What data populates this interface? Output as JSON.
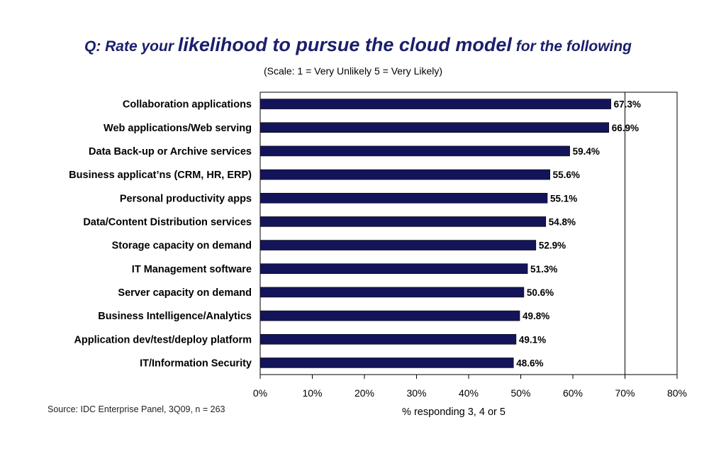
{
  "header": {
    "title_parts": [
      "Q: Rate your ",
      "likelihood to pursue the cloud model",
      " for the following"
    ],
    "subtitle": "(Scale: 1 = Very Unlikely  5 = Very Likely)"
  },
  "footer": {
    "source": "Source: IDC Enterprise Panel, 3Q09, n = 263"
  },
  "chart_data": {
    "type": "bar",
    "orientation": "horizontal",
    "categories": [
      "Collaboration applications",
      "Web applications/Web serving",
      "Data Back-up or Archive services",
      "Business applicat’ns (CRM, HR, ERP)",
      "Personal productivity apps",
      "Data/Content Distribution services",
      "Storage capacity on demand",
      "IT Management software",
      "Server capacity on demand",
      "Business Intelligence/Analytics",
      "Application dev/test/deploy platform",
      "IT/Information Security"
    ],
    "values": [
      67.3,
      66.9,
      59.4,
      55.6,
      55.1,
      54.8,
      52.9,
      51.3,
      50.6,
      49.8,
      49.1,
      48.6
    ],
    "value_labels": [
      "67.3%",
      "66.9%",
      "59.4%",
      "55.6%",
      "55.1%",
      "54.8%",
      "52.9%",
      "51.3%",
      "50.6%",
      "49.8%",
      "49.1%",
      "48.6%"
    ],
    "xlim": [
      0,
      80
    ],
    "xticks": [
      0,
      10,
      20,
      30,
      40,
      50,
      60,
      70,
      80
    ],
    "xtick_labels": [
      "0%",
      "10%",
      "20%",
      "30%",
      "40%",
      "50%",
      "60%",
      "70%",
      "80%"
    ],
    "xlabel": "% responding 3, 4 or 5",
    "ylabel": "",
    "reference_line": 70,
    "grid": false,
    "bar_color": "#14145a"
  }
}
